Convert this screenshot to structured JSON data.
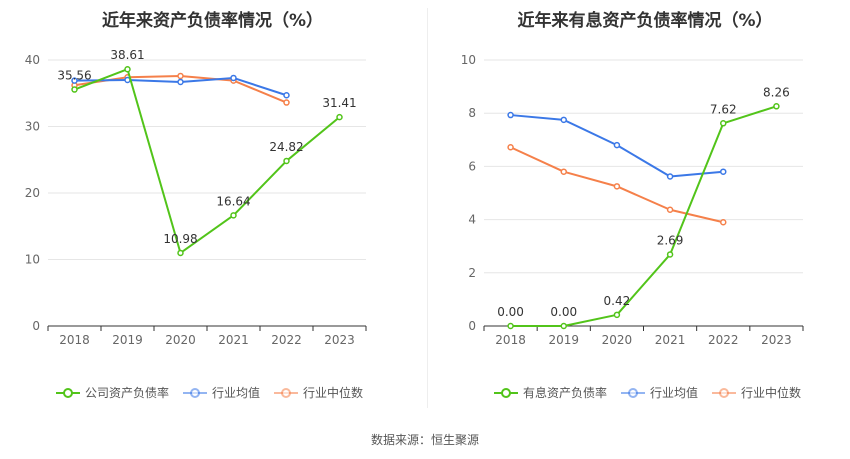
{
  "source_text": "数据来源：恒生聚源",
  "chart_data": [
    {
      "type": "line",
      "title": "近年来资产负债率情况（%）",
      "categories": [
        "2018",
        "2019",
        "2020",
        "2021",
        "2022",
        "2023"
      ],
      "ylim": [
        0,
        40
      ],
      "yticks": [
        0,
        10,
        20,
        30,
        40
      ],
      "grid": true,
      "legend_position": "bottom",
      "series": [
        {
          "name": "公司资产负债率",
          "color": "#52c41a",
          "values": [
            35.56,
            38.61,
            10.98,
            16.64,
            24.82,
            31.41
          ],
          "labels": [
            "35.56",
            "38.61",
            "10.98",
            "16.64",
            "24.82",
            "31.41"
          ]
        },
        {
          "name": "行业均值",
          "color": "#3b78e7",
          "values": [
            36.9,
            37.0,
            36.7,
            37.3,
            34.7,
            null
          ]
        },
        {
          "name": "行业中位数",
          "color": "#f5804a",
          "values": [
            36.2,
            37.4,
            37.6,
            36.9,
            33.6,
            null
          ]
        }
      ]
    },
    {
      "type": "line",
      "title": "近年来有息资产负债率情况（%）",
      "categories": [
        "2018",
        "2019",
        "2020",
        "2021",
        "2022",
        "2023"
      ],
      "ylim": [
        0,
        10
      ],
      "yticks": [
        0,
        2,
        4,
        6,
        8,
        10
      ],
      "grid": true,
      "legend_position": "bottom",
      "series": [
        {
          "name": "有息资产负债率",
          "color": "#52c41a",
          "values": [
            0.0,
            0.0,
            0.42,
            2.69,
            7.62,
            8.26
          ],
          "labels": [
            "0.00",
            "0.00",
            "0.42",
            "2.69",
            "7.62",
            "8.26"
          ]
        },
        {
          "name": "行业均值",
          "color": "#3b78e7",
          "values": [
            7.93,
            7.75,
            6.8,
            5.62,
            5.8,
            null
          ]
        },
        {
          "name": "行业中位数",
          "color": "#f5804a",
          "values": [
            6.72,
            5.8,
            5.25,
            4.37,
            3.9,
            null
          ]
        }
      ]
    }
  ]
}
